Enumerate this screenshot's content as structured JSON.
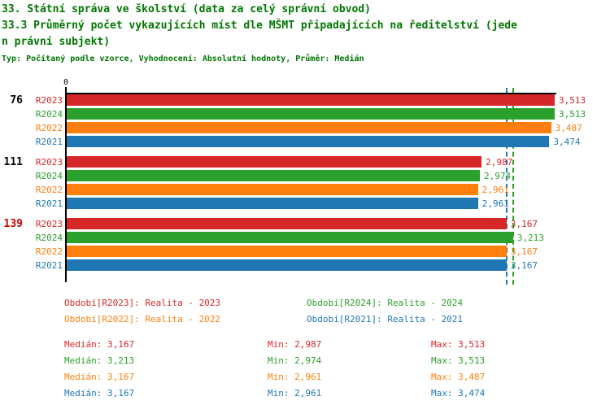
{
  "colors": {
    "title": "#007700",
    "red": "#d62728",
    "green": "#2ca02c",
    "orange": "#ff7f0e",
    "blue": "#1f77b4",
    "axis": "#000000",
    "group_highlight": "#cc0000",
    "group_default": "#000000"
  },
  "header": {
    "title_line1": "33. Státní správa ve školství (data za celý správní obvod)",
    "title_line2": "33.3 Průměrný počet vykazujících míst dle MŠMT připadajících na ředitelství (jede",
    "title_line3": "n právní subjekt)",
    "subtitle": "Typ: Počítaný podle vzorce, Vyhodnocení: Absolutní hodnoty, Průměr: Medián"
  },
  "chart_data": {
    "type": "bar",
    "orientation": "horizontal",
    "origin_label": "0",
    "xlim": [
      0,
      3.525
    ],
    "grid": false,
    "categories": [
      "76",
      "111",
      "139"
    ],
    "groups": [
      {
        "label": "76",
        "label_color": "#000000"
      },
      {
        "label": "111",
        "label_color": "#000000"
      },
      {
        "label": "139",
        "label_color": "#cc0000"
      }
    ],
    "series": [
      {
        "name": "R2023",
        "color": "#d62728",
        "values": [
          3.513,
          2.987,
          3.167
        ],
        "display": [
          "3,513",
          "2,987",
          "3,167"
        ]
      },
      {
        "name": "R2024",
        "color": "#2ca02c",
        "values": [
          3.513,
          2.974,
          3.213
        ],
        "display": [
          "3,513",
          "2,974",
          "3,213"
        ]
      },
      {
        "name": "R2022",
        "color": "#ff7f0e",
        "values": [
          3.487,
          2.961,
          3.167
        ],
        "display": [
          "3,487",
          "2,961",
          "3,167"
        ]
      },
      {
        "name": "R2021",
        "color": "#1f77b4",
        "values": [
          3.474,
          2.961,
          3.167
        ],
        "display": [
          "3,474",
          "2,961",
          "3,167"
        ]
      }
    ],
    "reference_lines": [
      {
        "value": 3.167,
        "color": "#1f77b4",
        "style": "dashed",
        "meaning": "median R2021/R2022/R2023"
      },
      {
        "value": 3.213,
        "color": "#2ca02c",
        "style": "dashed",
        "meaning": "median R2024"
      }
    ]
  },
  "legend": {
    "items": [
      {
        "label": "Období[R2023]: Realita - 2023",
        "color": "#d62728"
      },
      {
        "label": "Období[R2024]: Realita - 2024",
        "color": "#2ca02c"
      },
      {
        "label": "Období[R2022]: Realita - 2022",
        "color": "#ff7f0e"
      },
      {
        "label": "Období[R2021]: Realita - 2021",
        "color": "#1f77b4"
      }
    ]
  },
  "stats": {
    "rows": [
      {
        "color": "#d62728",
        "median": "Medián: 3,167",
        "min": "Min: 2,987",
        "max": "Max: 3,513"
      },
      {
        "color": "#2ca02c",
        "median": "Medián: 3,213",
        "min": "Min: 2,974",
        "max": "Max: 3,513"
      },
      {
        "color": "#ff7f0e",
        "median": "Medián: 3,167",
        "min": "Min: 2,961",
        "max": "Max: 3,487"
      },
      {
        "color": "#1f77b4",
        "median": "Medián: 3,167",
        "min": "Min: 2,961",
        "max": "Max: 3,474"
      }
    ]
  }
}
